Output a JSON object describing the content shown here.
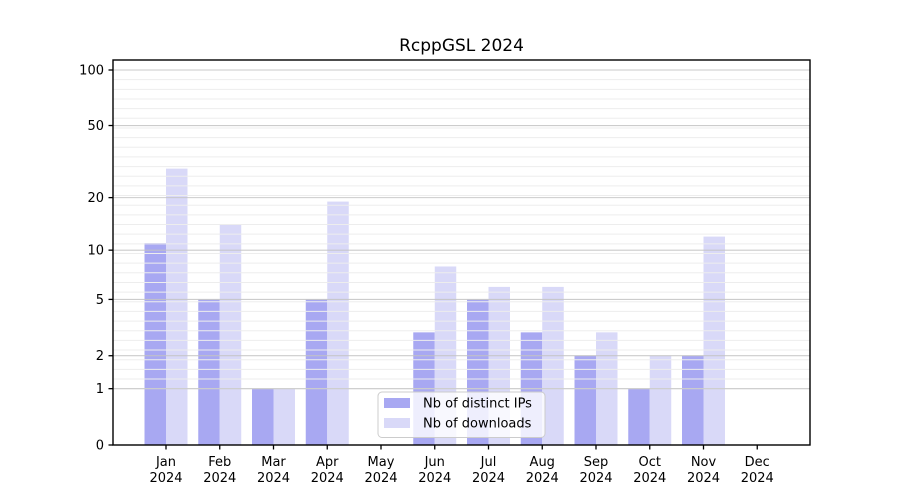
{
  "chart_data": {
    "type": "bar",
    "title": "RcppGSL 2024",
    "categories": [
      "Jan 2024",
      "Feb 2024",
      "Mar 2024",
      "Apr 2024",
      "May 2024",
      "Jun 2024",
      "Jul 2024",
      "Aug 2024",
      "Sep 2024",
      "Oct 2024",
      "Nov 2024",
      "Dec 2024"
    ],
    "series": [
      {
        "name": "Nb of distinct IPs",
        "color": "#a8a8f2",
        "values": [
          11,
          5,
          1,
          5,
          0,
          3,
          5,
          3,
          2,
          1,
          2,
          0
        ]
      },
      {
        "name": "Nb of downloads",
        "color": "#d9d9f8",
        "values": [
          29,
          14,
          1,
          19,
          0,
          8,
          6,
          6,
          3,
          2,
          12,
          0
        ]
      }
    ],
    "xlabel": "",
    "ylabel": "",
    "yscale": "log1p",
    "yticks": [
      0,
      1,
      2,
      5,
      10,
      20,
      50,
      100
    ],
    "ylim": [
      0,
      113
    ],
    "grid": "horizontal major + fine minor lines",
    "legend_position": "inside bottom-center",
    "colors": {
      "bar_dark": "#a8a8f2",
      "bar_light": "#d9d9f8",
      "major_grid": "#c3c3c3",
      "minor_grid": "#ededed",
      "axis": "#000000",
      "legend_border": "#cccccc",
      "text": "#000000"
    }
  }
}
